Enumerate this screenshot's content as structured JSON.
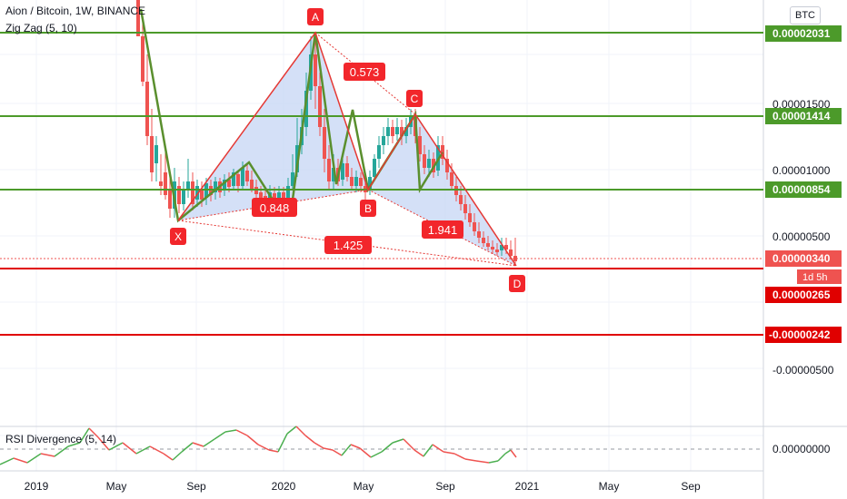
{
  "header": {
    "symbol_title": "Aion / Bitcoin, 1W, BINANCE",
    "indicator_zigzag": "Zig Zag (5, 10)",
    "currency_badge": "BTC"
  },
  "rsi_panel": {
    "title": "RSI Divergence (5, 14)",
    "axis_label": "0.00000000"
  },
  "x_axis_labels": [
    "2019",
    "May",
    "Sep",
    "2020",
    "May",
    "Sep",
    "2021",
    "May",
    "Sep"
  ],
  "price_axis": {
    "ticks": [
      "0.00001500",
      "0.00001000",
      "0.00000500",
      "-0.00000500"
    ],
    "tags": [
      {
        "label": "0.00002031",
        "color": "#4c9a2a"
      },
      {
        "label": "0.00001414",
        "color": "#4c9a2a"
      },
      {
        "label": "0.00000854",
        "color": "#4c9a2a"
      },
      {
        "label": "0.00000340",
        "color": "#ef5350"
      },
      {
        "label": "1d 5h",
        "color": "#ef5350"
      },
      {
        "label": "0.00000265",
        "color": "#e00000"
      },
      {
        "label": "-0.00000242",
        "color": "#e00000"
      }
    ]
  },
  "pattern": {
    "points": [
      "X",
      "A",
      "B",
      "C",
      "D"
    ],
    "ratios": [
      "0.573",
      "0.848",
      "1.941",
      "1.425"
    ]
  },
  "colors": {
    "support_line": "#4c9a2a",
    "resistance_line": "#e00000",
    "pattern_line": "#e53935",
    "pattern_fill": "#c9d8f5",
    "zigzag": "#5a8f2e",
    "candle_up": "#26a69a",
    "candle_down": "#ef5350",
    "rsi_up": "#4caf50",
    "rsi_down": "#ef5350"
  },
  "chart_data": {
    "type": "line",
    "title": "Aion / Bitcoin, 1W, BINANCE",
    "price_levels": [
      {
        "value": 2.031e-05,
        "color": "green"
      },
      {
        "value": 1.414e-05,
        "color": "green"
      },
      {
        "value": 8.54e-06,
        "color": "green"
      },
      {
        "value": 2.65e-06,
        "color": "red"
      },
      {
        "value": -2.42e-06,
        "color": "red"
      }
    ],
    "last_price": 3.4e-06,
    "harmonic_points": [
      {
        "label": "X",
        "date": "2019-08",
        "price": 6.3e-06
      },
      {
        "label": "A",
        "date": "2020-02",
        "price": 2.03e-05
      },
      {
        "label": "B",
        "date": "2020-05",
        "price": 8.5e-06
      },
      {
        "label": "C",
        "date": "2020-07",
        "price": 1.41e-05
      },
      {
        "label": "D",
        "date": "2020-12",
        "price": 2.8e-06
      }
    ],
    "ratios": [
      {
        "legs": "XA-AB",
        "value": 0.573
      },
      {
        "legs": "AB-BC",
        "value": 0.848
      },
      {
        "legs": "BC-CD",
        "value": 1.941
      },
      {
        "legs": "XA-AD",
        "value": 1.425
      }
    ],
    "zigzag": [
      {
        "date": "2019-04",
        "price": 2.2e-05
      },
      {
        "date": "2019-08",
        "price": 6.3e-06
      },
      {
        "date": "2019-11",
        "price": 1.1e-05
      },
      {
        "date": "2019-12",
        "price": 7.5e-06
      },
      {
        "date": "2020-02",
        "price": 2.03e-05
      },
      {
        "date": "2020-04",
        "price": 9e-06
      },
      {
        "date": "2020-05",
        "price": 1.45e-05
      },
      {
        "date": "2020-05",
        "price": 8.5e-06
      },
      {
        "date": "2020-07",
        "price": 1.41e-05
      },
      {
        "date": "2020-08",
        "price": 9e-06
      },
      {
        "date": "2020-09",
        "price": 1.2e-05
      }
    ],
    "ylim": [
      -6.5e-06,
      2.25e-05
    ]
  }
}
